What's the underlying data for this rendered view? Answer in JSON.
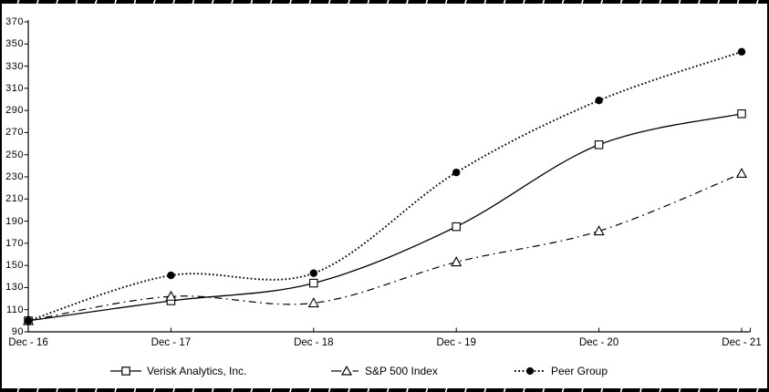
{
  "frame": {
    "background": "#ffffff",
    "border_color": "#000000",
    "line_color": "#000000"
  },
  "chart_data": {
    "type": "line",
    "title": "",
    "xlabel": "",
    "ylabel": "",
    "categories": [
      "Dec - 16",
      "Dec - 17",
      "Dec - 18",
      "Dec - 19",
      "Dec - 20",
      "Dec - 21"
    ],
    "series": [
      {
        "name": "Verisk Analytics, Inc.",
        "values": [
          100,
          118,
          134,
          185,
          259,
          287
        ],
        "line": "solid",
        "marker": "open-square",
        "color": "#000000"
      },
      {
        "name": "S&P 500 Index",
        "values": [
          100,
          122,
          116,
          153,
          181,
          233
        ],
        "line": "dash-dot",
        "marker": "open-triangle",
        "color": "#000000"
      },
      {
        "name": "Peer Group",
        "values": [
          100,
          141,
          143,
          234,
          299,
          343
        ],
        "line": "dotted",
        "marker": "filled-circle",
        "color": "#000000"
      }
    ],
    "y_axis": {
      "min": 90,
      "max": 370,
      "tick_step": 20,
      "ticks": [
        370,
        350,
        330,
        310,
        290,
        270,
        250,
        230,
        210,
        190,
        170,
        150,
        130,
        110,
        90
      ]
    },
    "x_axis": {
      "ticks_visible": true
    },
    "grid": false,
    "legend_position": "bottom",
    "smoothed_lines": true
  }
}
